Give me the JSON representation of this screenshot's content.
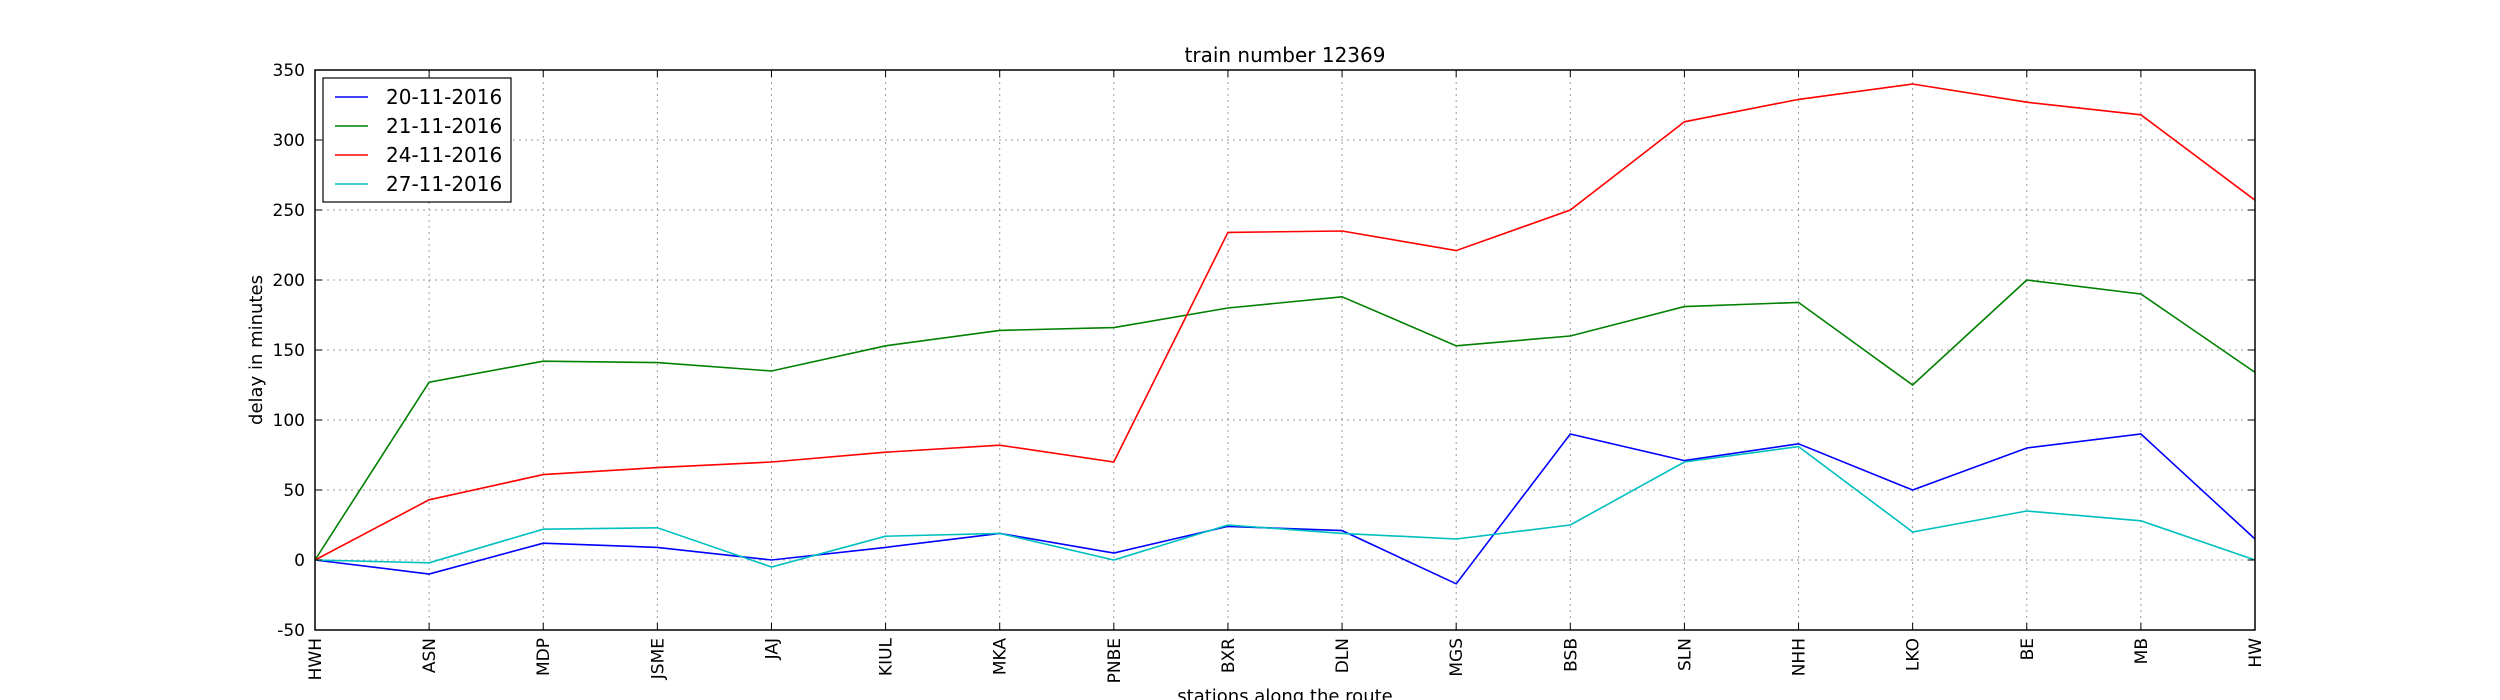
{
  "chart_data": {
    "type": "line",
    "title": "train number 12369",
    "xlabel": "stations along the route",
    "ylabel": "delay in minutes",
    "categories": [
      "HWH",
      "ASN",
      "MDP",
      "JSME",
      "JAJ",
      "KIUL",
      "MKA",
      "PNBE",
      "BXR",
      "DLN",
      "MGS",
      "BSB",
      "SLN",
      "NHH",
      "LKO",
      "BE",
      "MB",
      "HW"
    ],
    "ylim": [
      -50,
      350
    ],
    "yticks": [
      -50,
      0,
      50,
      100,
      150,
      200,
      250,
      300,
      350
    ],
    "grid": true,
    "legend_position": "top-left",
    "series": [
      {
        "name": "20-11-2016",
        "color": "#0000ff",
        "values": [
          0,
          -10,
          12,
          9,
          0,
          9,
          19,
          5,
          24,
          21,
          -17,
          90,
          71,
          83,
          50,
          80,
          90,
          15
        ]
      },
      {
        "name": "21-11-2016",
        "color": "#008000",
        "values": [
          0,
          127,
          142,
          141,
          135,
          153,
          164,
          166,
          180,
          188,
          153,
          160,
          181,
          184,
          125,
          200,
          190,
          134
        ]
      },
      {
        "name": "24-11-2016",
        "color": "#ff0000",
        "values": [
          0,
          43,
          61,
          66,
          70,
          77,
          82,
          70,
          234,
          235,
          221,
          250,
          313,
          329,
          340,
          327,
          318,
          257
        ]
      },
      {
        "name": "27-11-2016",
        "color": "#00bfbf",
        "values": [
          0,
          -2,
          22,
          23,
          -5,
          17,
          19,
          0,
          25,
          19,
          15,
          25,
          70,
          81,
          20,
          35,
          28,
          0
        ]
      }
    ]
  }
}
